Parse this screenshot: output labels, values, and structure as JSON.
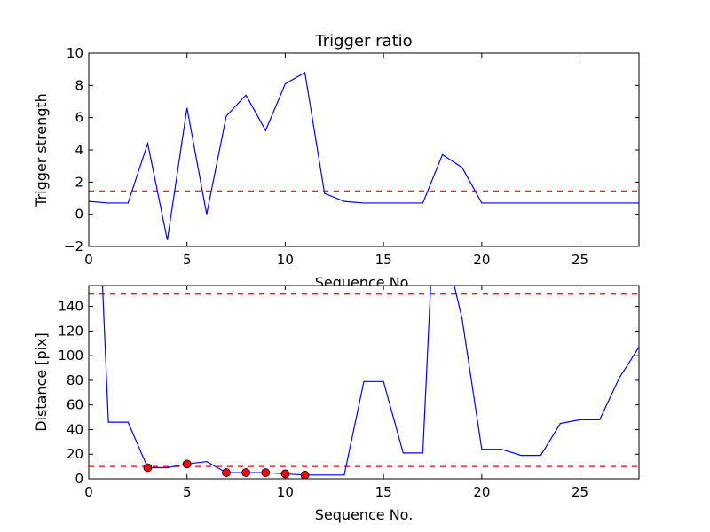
{
  "chart_data": [
    {
      "type": "line",
      "title": "Trigger ratio",
      "xlabel": "Sequence No.",
      "ylabel": "Trigger strength",
      "xlim": [
        0,
        28
      ],
      "ylim": [
        -2,
        10
      ],
      "xticks": [
        0,
        5,
        10,
        15,
        20,
        25
      ],
      "yticks": [
        -2,
        0,
        2,
        4,
        6,
        8,
        10
      ],
      "series": [
        {
          "color": "#0000ff",
          "style": "solid",
          "x": [
            0,
            1,
            2,
            3,
            4,
            5,
            6,
            7,
            8,
            9,
            10,
            11,
            12,
            13,
            14,
            15,
            16,
            17,
            18,
            19,
            20,
            21,
            22,
            23,
            24,
            25,
            26,
            27,
            28
          ],
          "y": [
            0.8,
            0.7,
            0.7,
            4.4,
            -1.6,
            6.6,
            0.0,
            6.1,
            7.4,
            5.2,
            8.1,
            8.8,
            1.3,
            0.8,
            0.7,
            0.7,
            0.7,
            0.7,
            3.7,
            2.9,
            0.7,
            0.7,
            0.7,
            0.7,
            0.7,
            0.7,
            0.7,
            0.7,
            0.7
          ]
        }
      ],
      "hlines": [
        {
          "y": 1.45,
          "color": "#ff0000",
          "style": "dashed"
        }
      ],
      "grid": false
    },
    {
      "type": "line",
      "title": "",
      "xlabel": "Sequence No.",
      "ylabel": "Distance [pix]",
      "xlim": [
        0,
        28
      ],
      "ylim": [
        0,
        157
      ],
      "xticks": [
        0,
        5,
        10,
        15,
        20,
        25
      ],
      "yticks": [
        0,
        20,
        40,
        60,
        80,
        100,
        120,
        140
      ],
      "series": [
        {
          "color": "#0000ff",
          "style": "solid",
          "x": [
            0.7,
            1,
            2,
            3,
            4,
            5,
            6,
            7,
            8,
            9,
            10,
            11,
            12,
            13,
            14,
            15,
            16,
            17,
            17.4,
            18,
            18.6,
            19,
            20,
            21,
            22,
            23,
            24,
            25,
            26,
            27,
            28
          ],
          "y": [
            157,
            46,
            46,
            9,
            9,
            12,
            14,
            5,
            5,
            5,
            4,
            3,
            3,
            3,
            79,
            79,
            21,
            21,
            157,
            157,
            157,
            130,
            24,
            24,
            19,
            19,
            45,
            48,
            48,
            82,
            107
          ]
        }
      ],
      "markers": {
        "color": "#ff0000",
        "x": [
          3,
          5,
          7,
          8,
          9,
          10,
          11
        ],
        "y": [
          9,
          12,
          5,
          5,
          5,
          4,
          3
        ]
      },
      "hlines": [
        {
          "y": 150,
          "color": "#ff0000",
          "style": "dashed"
        },
        {
          "y": 10,
          "color": "#ff0000",
          "style": "dashed"
        }
      ],
      "grid": false
    }
  ]
}
